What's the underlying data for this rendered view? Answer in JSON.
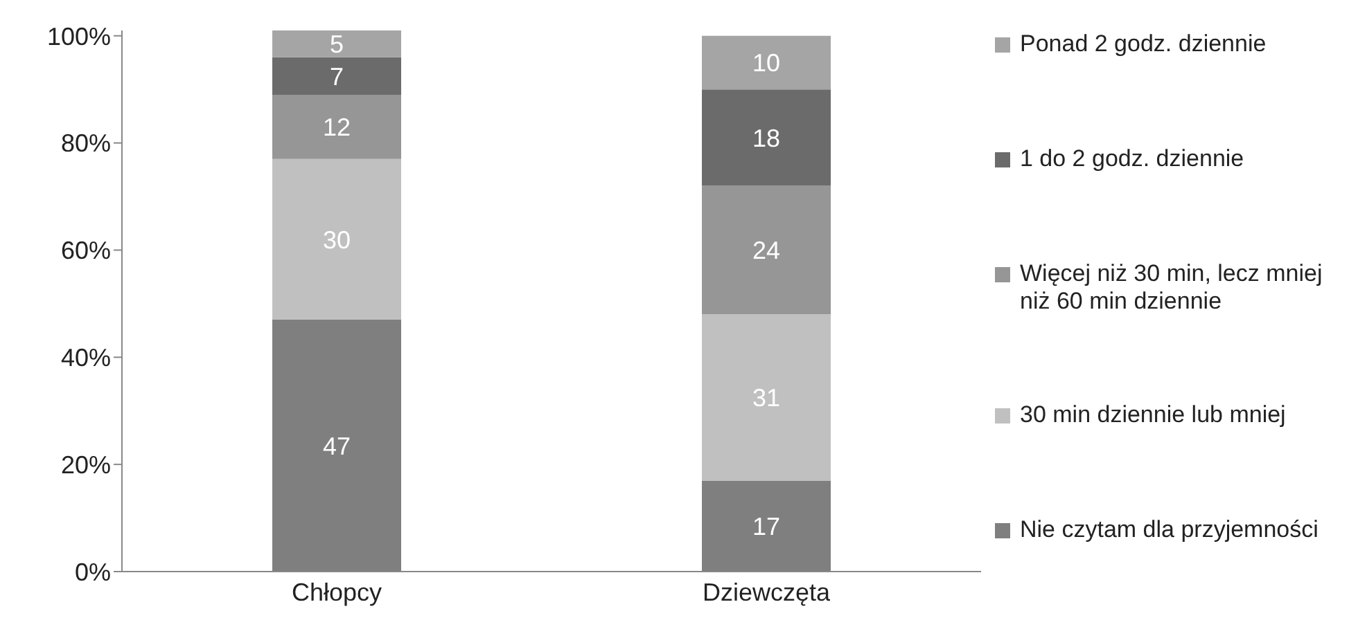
{
  "chart_data": {
    "type": "bar",
    "stacked": true,
    "categories": [
      "Chłopcy",
      "Dziewczęta"
    ],
    "series": [
      {
        "name": "Nie czytam dla przyjemności",
        "color": "#7f7f7f",
        "values": [
          47,
          17
        ]
      },
      {
        "name": "30 min dziennie lub mniej",
        "color": "#c0c0c0",
        "values": [
          30,
          31
        ]
      },
      {
        "name": "Więcej niż 30 min, lecz mniej niż 60 min dziennie",
        "color": "#969696",
        "values": [
          12,
          24
        ]
      },
      {
        "name": "1 do 2 godz. dziennie",
        "color": "#6b6b6b",
        "values": [
          7,
          18
        ]
      },
      {
        "name": "Ponad 2 godz. dziennie",
        "color": "#a5a5a5",
        "values": [
          5,
          10
        ]
      }
    ],
    "ylim": [
      0,
      101
    ],
    "yticks": [
      {
        "value": 0,
        "label": "0%"
      },
      {
        "value": 20,
        "label": "20%"
      },
      {
        "value": 40,
        "label": "40%"
      },
      {
        "value": 60,
        "label": "60%"
      },
      {
        "value": 80,
        "label": "80%"
      },
      {
        "value": 100,
        "label": "100%"
      }
    ],
    "data_labels": true,
    "legend": "right",
    "grid": false
  }
}
